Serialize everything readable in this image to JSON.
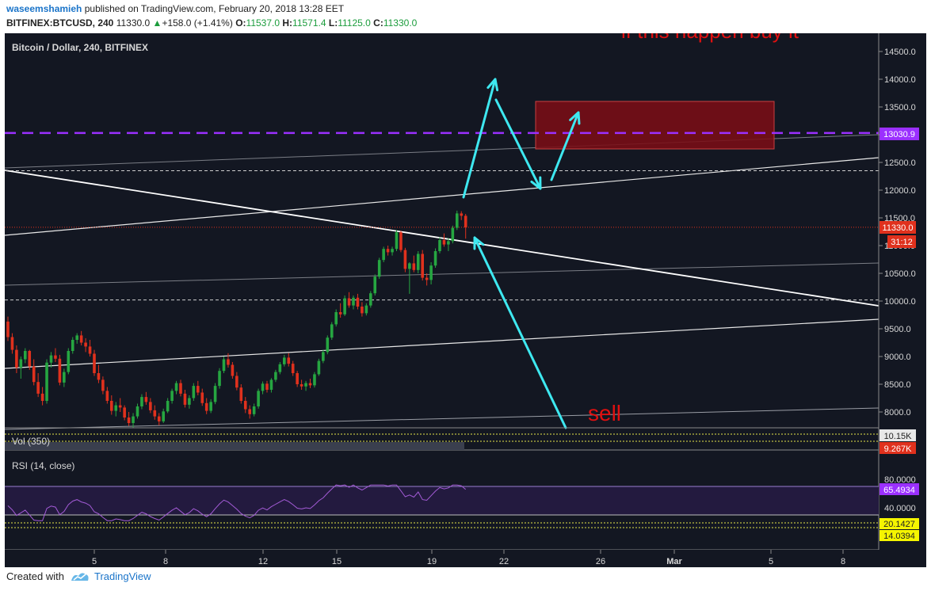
{
  "header": {
    "author": "waseemshamieh",
    "published": "published on TradingView.com, February 20, 2018 13:28 EET",
    "symbol": "BITFINEX:BTCUSD, 240",
    "price": "11330.0",
    "change": "+158.0 (+1.41%)",
    "o_label": "O:",
    "o_val": "11537.0",
    "h_label": "H:",
    "h_val": "11571.4",
    "l_label": "L:",
    "l_val": "11125.0",
    "c_label": "C:",
    "c_val": "11330.0"
  },
  "footer": {
    "created_with": "Created with",
    "brand": "TradingView"
  },
  "colors": {
    "background": "#131722",
    "up": "#26a641",
    "down": "#e0311d",
    "purple": "#9b30ff",
    "cyan": "#3ee8f0",
    "annotation_red": "#e01010",
    "zone": "#7a0e16"
  },
  "chart_data": {
    "type": "candlestick",
    "title": "Bitcoin / Dollar, 240, BITFINEX",
    "ylim": [
      7700,
      14900
    ],
    "y_ticks": [
      "14500.0",
      "14000.0",
      "13500.0",
      "13000.0",
      "12500.0",
      "12000.0",
      "11500.0",
      "11000.0",
      "10500.0",
      "10000.0",
      "9500.0",
      "9000.0",
      "8500.0",
      "8000.0"
    ],
    "x_ticks": [
      "5",
      "8",
      "12",
      "15",
      "19",
      "22",
      "26",
      "Mar",
      "5",
      "8"
    ],
    "price_labels": {
      "last": "11330.0",
      "countdown": "31:12",
      "level": "13030.9"
    },
    "levels": {
      "purple_dashed": 13030.9,
      "white_dashed": [
        12350,
        10020
      ]
    },
    "annotations": {
      "top": "if this happen buy it",
      "sell": "sell"
    },
    "volume": {
      "label": "Vol (350)",
      "values": [
        "10.15K",
        "9.267K"
      ]
    },
    "rsi": {
      "label": "RSI (14, close)",
      "ticks": [
        "80.0000",
        "40.0000"
      ],
      "value": "65.4934",
      "lower": [
        "20.1427",
        "14.0394"
      ]
    },
    "series": [
      {
        "o": 9630,
        "h": 9720,
        "l": 9280,
        "c": 9350
      },
      {
        "o": 9350,
        "h": 9420,
        "l": 9050,
        "c": 9120
      },
      {
        "o": 9120,
        "h": 9200,
        "l": 8700,
        "c": 8800
      },
      {
        "o": 8800,
        "h": 9000,
        "l": 8600,
        "c": 8950
      },
      {
        "o": 8950,
        "h": 9150,
        "l": 8880,
        "c": 9100
      },
      {
        "o": 9100,
        "h": 9120,
        "l": 8760,
        "c": 8820
      },
      {
        "o": 8820,
        "h": 8950,
        "l": 8480,
        "c": 8540
      },
      {
        "o": 8540,
        "h": 8700,
        "l": 8270,
        "c": 8330
      },
      {
        "o": 8330,
        "h": 8450,
        "l": 8120,
        "c": 8200
      },
      {
        "o": 8200,
        "h": 8950,
        "l": 8150,
        "c": 8890
      },
      {
        "o": 8890,
        "h": 9080,
        "l": 8800,
        "c": 9020
      },
      {
        "o": 9020,
        "h": 9150,
        "l": 8900,
        "c": 8960
      },
      {
        "o": 8960,
        "h": 9030,
        "l": 8480,
        "c": 8530
      },
      {
        "o": 8530,
        "h": 8780,
        "l": 8450,
        "c": 8720
      },
      {
        "o": 8720,
        "h": 9150,
        "l": 8680,
        "c": 9100
      },
      {
        "o": 9100,
        "h": 9350,
        "l": 9050,
        "c": 9300
      },
      {
        "o": 9300,
        "h": 9420,
        "l": 9230,
        "c": 9380
      },
      {
        "o": 9380,
        "h": 9460,
        "l": 9200,
        "c": 9250
      },
      {
        "o": 9250,
        "h": 9330,
        "l": 9080,
        "c": 9180
      },
      {
        "o": 9180,
        "h": 9300,
        "l": 9000,
        "c": 9050
      },
      {
        "o": 9050,
        "h": 9120,
        "l": 8650,
        "c": 8700
      },
      {
        "o": 8700,
        "h": 8850,
        "l": 8520,
        "c": 8580
      },
      {
        "o": 8580,
        "h": 8640,
        "l": 8320,
        "c": 8380
      },
      {
        "o": 8380,
        "h": 8450,
        "l": 8150,
        "c": 8200
      },
      {
        "o": 8200,
        "h": 8300,
        "l": 7950,
        "c": 8020
      },
      {
        "o": 8020,
        "h": 8180,
        "l": 7920,
        "c": 8120
      },
      {
        "o": 8120,
        "h": 8250,
        "l": 8000,
        "c": 8080
      },
      {
        "o": 8080,
        "h": 8120,
        "l": 7850,
        "c": 7900
      },
      {
        "o": 7900,
        "h": 8000,
        "l": 7750,
        "c": 7800
      },
      {
        "o": 7800,
        "h": 7980,
        "l": 7720,
        "c": 7920
      },
      {
        "o": 7920,
        "h": 8150,
        "l": 7880,
        "c": 8100
      },
      {
        "o": 8100,
        "h": 8320,
        "l": 8050,
        "c": 8270
      },
      {
        "o": 8270,
        "h": 8360,
        "l": 8130,
        "c": 8180
      },
      {
        "o": 8180,
        "h": 8250,
        "l": 7980,
        "c": 8030
      },
      {
        "o": 8030,
        "h": 8120,
        "l": 7860,
        "c": 7920
      },
      {
        "o": 7920,
        "h": 7980,
        "l": 7760,
        "c": 7830
      },
      {
        "o": 7830,
        "h": 8060,
        "l": 7800,
        "c": 8010
      },
      {
        "o": 8010,
        "h": 8250,
        "l": 7980,
        "c": 8200
      },
      {
        "o": 8200,
        "h": 8420,
        "l": 8150,
        "c": 8380
      },
      {
        "o": 8380,
        "h": 8560,
        "l": 8320,
        "c": 8520
      },
      {
        "o": 8520,
        "h": 8580,
        "l": 8280,
        "c": 8330
      },
      {
        "o": 8330,
        "h": 8400,
        "l": 8080,
        "c": 8130
      },
      {
        "o": 8130,
        "h": 8300,
        "l": 8060,
        "c": 8250
      },
      {
        "o": 8250,
        "h": 8520,
        "l": 8200,
        "c": 8470
      },
      {
        "o": 8470,
        "h": 8560,
        "l": 8300,
        "c": 8350
      },
      {
        "o": 8350,
        "h": 8420,
        "l": 8110,
        "c": 8160
      },
      {
        "o": 8160,
        "h": 8250,
        "l": 7960,
        "c": 8020
      },
      {
        "o": 8020,
        "h": 8230,
        "l": 7980,
        "c": 8180
      },
      {
        "o": 8180,
        "h": 8520,
        "l": 8140,
        "c": 8470
      },
      {
        "o": 8470,
        "h": 8790,
        "l": 8420,
        "c": 8740
      },
      {
        "o": 8740,
        "h": 9000,
        "l": 8700,
        "c": 8950
      },
      {
        "o": 8950,
        "h": 9060,
        "l": 8800,
        "c": 8850
      },
      {
        "o": 8850,
        "h": 8900,
        "l": 8600,
        "c": 8650
      },
      {
        "o": 8650,
        "h": 8720,
        "l": 8390,
        "c": 8440
      },
      {
        "o": 8440,
        "h": 8500,
        "l": 8150,
        "c": 8200
      },
      {
        "o": 8200,
        "h": 8270,
        "l": 7980,
        "c": 8050
      },
      {
        "o": 8050,
        "h": 8120,
        "l": 7880,
        "c": 7960
      },
      {
        "o": 7960,
        "h": 8150,
        "l": 7920,
        "c": 8100
      },
      {
        "o": 8100,
        "h": 8420,
        "l": 8060,
        "c": 8380
      },
      {
        "o": 8380,
        "h": 8550,
        "l": 8320,
        "c": 8510
      },
      {
        "o": 8510,
        "h": 8560,
        "l": 8350,
        "c": 8400
      },
      {
        "o": 8400,
        "h": 8610,
        "l": 8350,
        "c": 8580
      },
      {
        "o": 8580,
        "h": 8760,
        "l": 8540,
        "c": 8720
      },
      {
        "o": 8720,
        "h": 8900,
        "l": 8680,
        "c": 8860
      },
      {
        "o": 8860,
        "h": 9030,
        "l": 8820,
        "c": 8980
      },
      {
        "o": 8980,
        "h": 9060,
        "l": 8820,
        "c": 8870
      },
      {
        "o": 8870,
        "h": 8920,
        "l": 8650,
        "c": 8700
      },
      {
        "o": 8700,
        "h": 8740,
        "l": 8450,
        "c": 8500
      },
      {
        "o": 8500,
        "h": 8580,
        "l": 8400,
        "c": 8460
      },
      {
        "o": 8460,
        "h": 8560,
        "l": 8380,
        "c": 8520
      },
      {
        "o": 8520,
        "h": 8600,
        "l": 8430,
        "c": 8480
      },
      {
        "o": 8480,
        "h": 8720,
        "l": 8440,
        "c": 8680
      },
      {
        "o": 8680,
        "h": 8960,
        "l": 8650,
        "c": 8920
      },
      {
        "o": 8920,
        "h": 9120,
        "l": 8880,
        "c": 9080
      },
      {
        "o": 9080,
        "h": 9380,
        "l": 9040,
        "c": 9340
      },
      {
        "o": 9340,
        "h": 9620,
        "l": 9300,
        "c": 9580
      },
      {
        "o": 9580,
        "h": 9850,
        "l": 9540,
        "c": 9800
      },
      {
        "o": 9800,
        "h": 9960,
        "l": 9700,
        "c": 9760
      },
      {
        "o": 9760,
        "h": 10100,
        "l": 9730,
        "c": 10050
      },
      {
        "o": 10050,
        "h": 10160,
        "l": 9880,
        "c": 9920
      },
      {
        "o": 9920,
        "h": 10100,
        "l": 9850,
        "c": 10060
      },
      {
        "o": 10060,
        "h": 10130,
        "l": 9850,
        "c": 9900
      },
      {
        "o": 9900,
        "h": 9980,
        "l": 9720,
        "c": 9780
      },
      {
        "o": 9780,
        "h": 9960,
        "l": 9740,
        "c": 9920
      },
      {
        "o": 9920,
        "h": 10180,
        "l": 9880,
        "c": 10140
      },
      {
        "o": 10140,
        "h": 10480,
        "l": 10100,
        "c": 10440
      },
      {
        "o": 10440,
        "h": 10780,
        "l": 10400,
        "c": 10740
      },
      {
        "o": 10740,
        "h": 10980,
        "l": 10700,
        "c": 10940
      },
      {
        "o": 10940,
        "h": 11000,
        "l": 10820,
        "c": 10880
      },
      {
        "o": 10880,
        "h": 10980,
        "l": 10820,
        "c": 10940
      },
      {
        "o": 10940,
        "h": 11280,
        "l": 10900,
        "c": 11240
      },
      {
        "o": 11240,
        "h": 11270,
        "l": 10880,
        "c": 10920
      },
      {
        "o": 10920,
        "h": 10960,
        "l": 10520,
        "c": 10580
      },
      {
        "o": 10580,
        "h": 10700,
        "l": 10130,
        "c": 10680
      },
      {
        "o": 10680,
        "h": 10820,
        "l": 10520,
        "c": 10560
      },
      {
        "o": 10560,
        "h": 10900,
        "l": 10500,
        "c": 10850
      },
      {
        "o": 10850,
        "h": 10920,
        "l": 10370,
        "c": 10420
      },
      {
        "o": 10420,
        "h": 10500,
        "l": 10280,
        "c": 10380
      },
      {
        "o": 10380,
        "h": 10700,
        "l": 10300,
        "c": 10640
      },
      {
        "o": 10640,
        "h": 10950,
        "l": 10600,
        "c": 10900
      },
      {
        "o": 10900,
        "h": 11150,
        "l": 10860,
        "c": 11100
      },
      {
        "o": 11100,
        "h": 11220,
        "l": 10980,
        "c": 11020
      },
      {
        "o": 11020,
        "h": 11140,
        "l": 10900,
        "c": 11080
      },
      {
        "o": 11080,
        "h": 11360,
        "l": 11040,
        "c": 11320
      },
      {
        "o": 11320,
        "h": 11630,
        "l": 11280,
        "c": 11580
      },
      {
        "o": 11580,
        "h": 11620,
        "l": 11460,
        "c": 11537
      },
      {
        "o": 11537,
        "h": 11571,
        "l": 11125,
        "c": 11330
      }
    ]
  }
}
